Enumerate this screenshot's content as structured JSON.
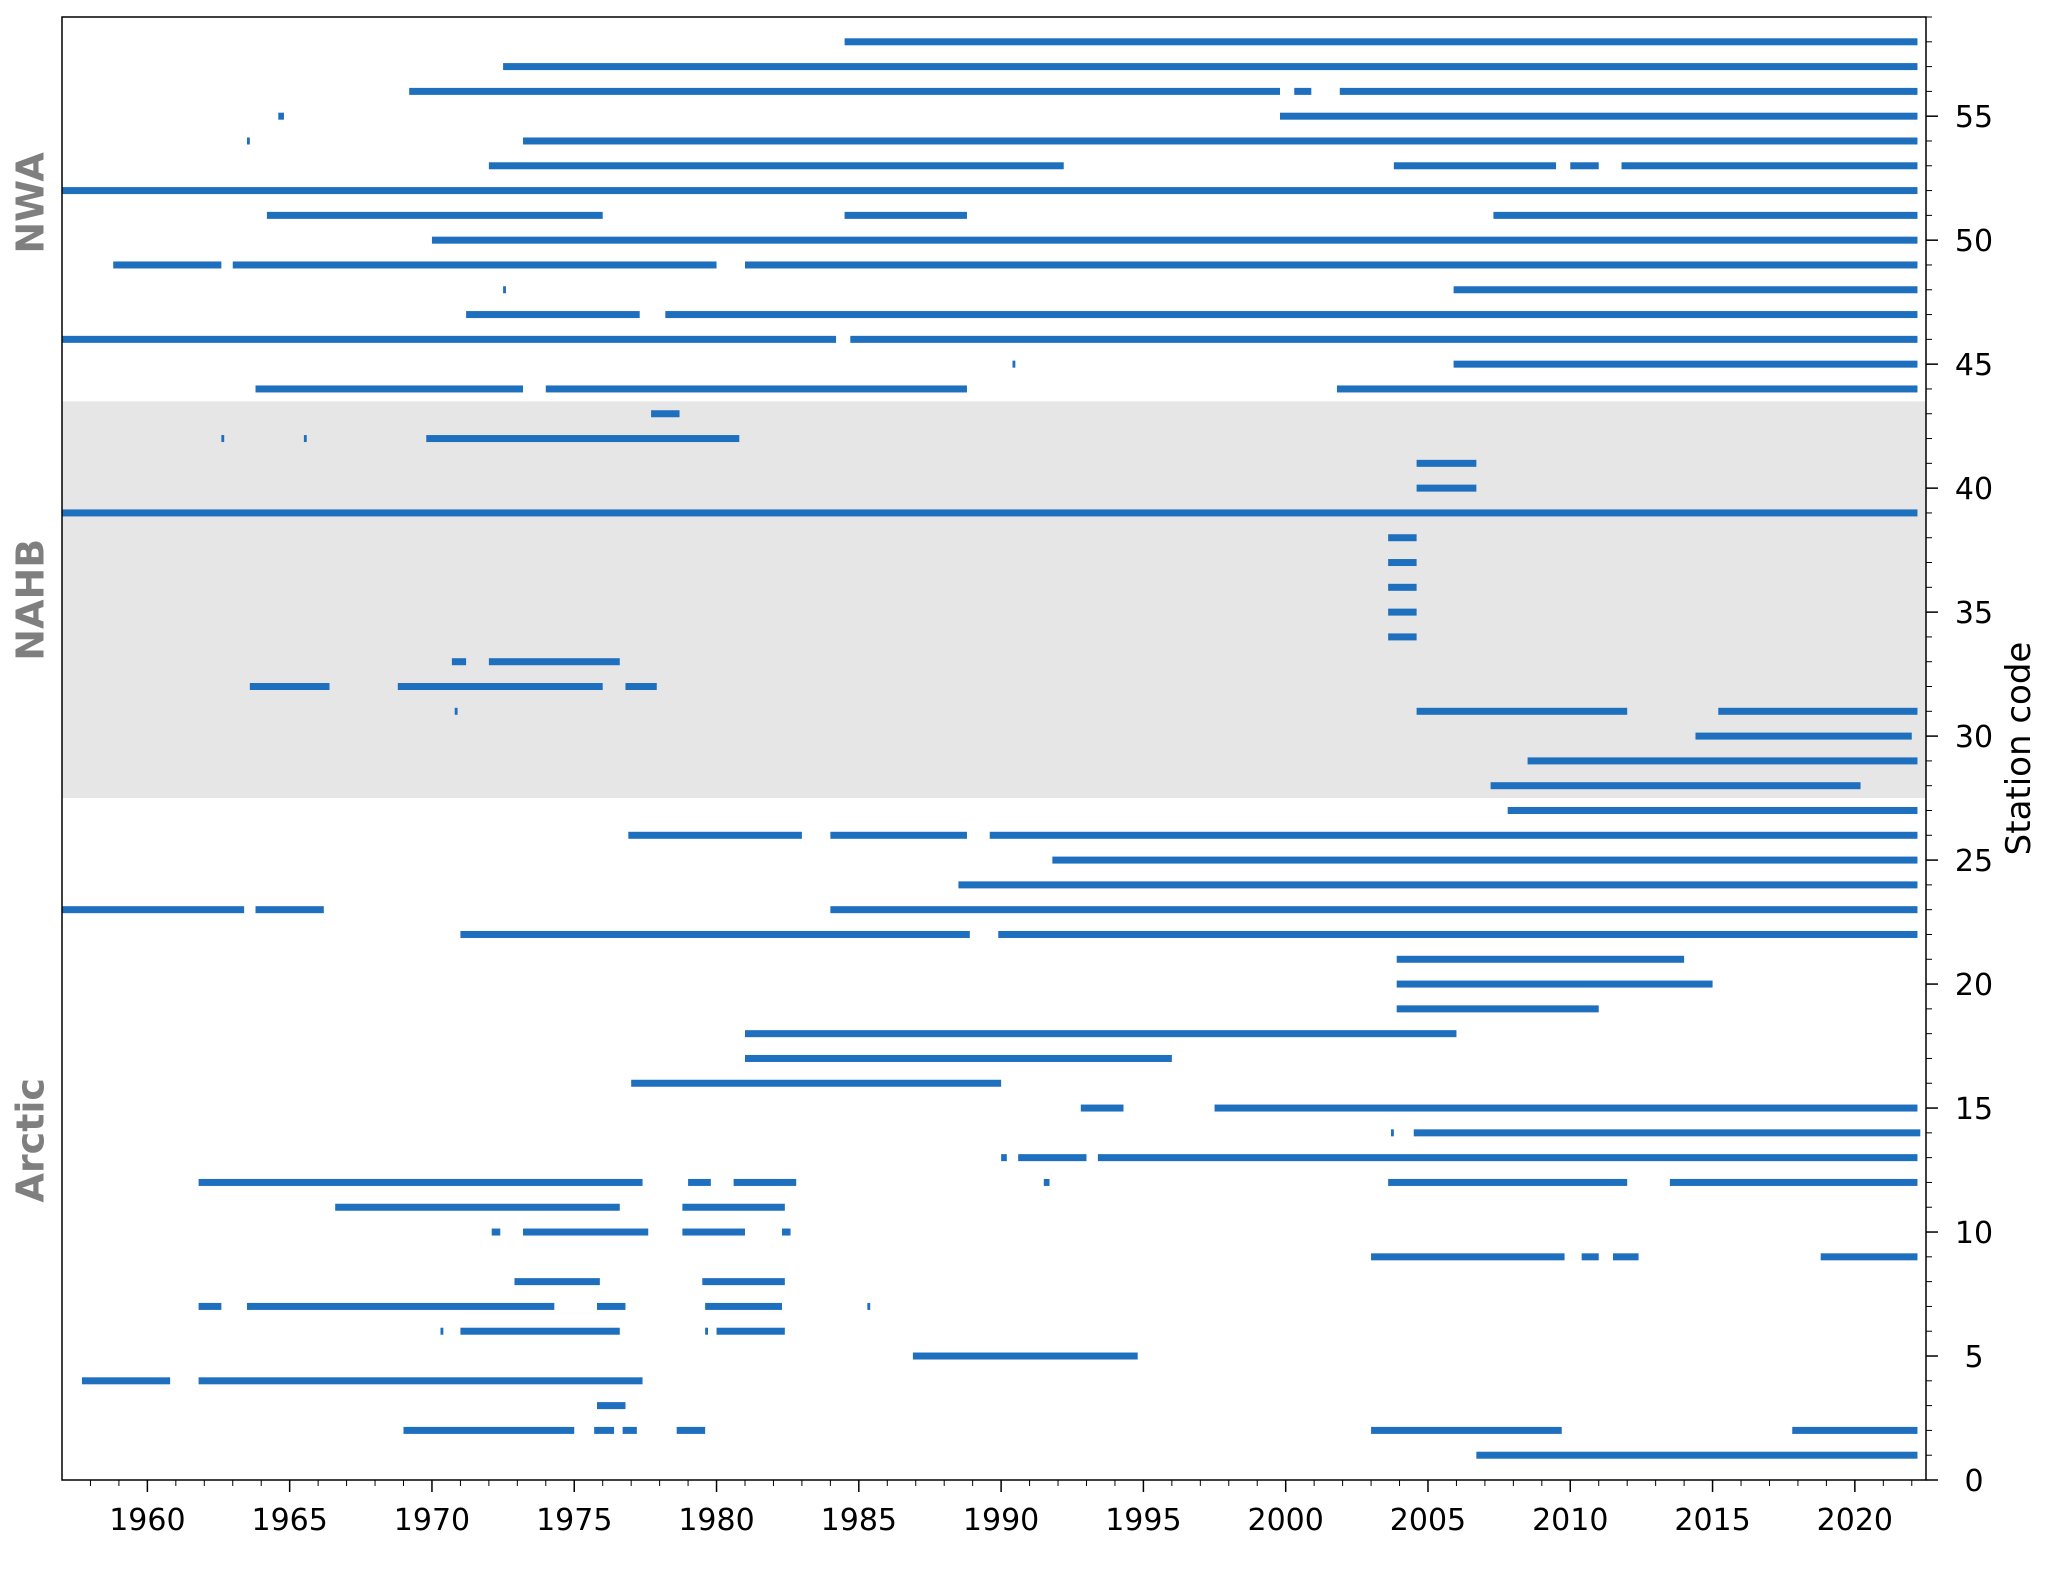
{
  "chart_data": {
    "type": "timeline",
    "xlim": [
      1957,
      2022.5
    ],
    "ylim": [
      0,
      59
    ],
    "ylabel": "Station code",
    "xticks": [
      "1960",
      "1965",
      "1970",
      "1975",
      "1980",
      "1985",
      "1990",
      "1995",
      "2000",
      "2005",
      "2010",
      "2015",
      "2020"
    ],
    "yticks": [
      "0",
      "5",
      "10",
      "15",
      "20",
      "25",
      "30",
      "35",
      "40",
      "45",
      "50",
      "55"
    ],
    "regions": [
      {
        "label": "NWA",
        "y_range": [
          43.5,
          59
        ]
      },
      {
        "label": "NAHB",
        "y_range": [
          27.5,
          43.5
        ],
        "shaded": true
      },
      {
        "label": "Arctic",
        "y_range": [
          0,
          27.5
        ]
      }
    ],
    "bar_color": "#1f6fbf",
    "shade_color": "#e6e6e6",
    "label_color": "#7f7f7f",
    "stations": [
      {
        "code": 58,
        "periods": [
          [
            1984.5,
            2022.2
          ]
        ]
      },
      {
        "code": 57,
        "periods": [
          [
            1972.5,
            2022.2
          ]
        ]
      },
      {
        "code": 56,
        "periods": [
          [
            1969.2,
            1999.8
          ],
          [
            2000.3,
            2000.9
          ],
          [
            2001.9,
            2022.2
          ]
        ]
      },
      {
        "code": 55,
        "periods": [
          [
            1964.6,
            1964.8
          ],
          [
            1999.8,
            2022.2
          ]
        ]
      },
      {
        "code": 54,
        "periods": [
          [
            1963.5,
            1963.6
          ],
          [
            1973.2,
            2022.2
          ]
        ]
      },
      {
        "code": 53,
        "periods": [
          [
            1972.0,
            1992.2
          ],
          [
            2003.8,
            2009.5
          ],
          [
            2010.0,
            2011.0
          ],
          [
            2011.8,
            2022.2
          ]
        ]
      },
      {
        "code": 52,
        "periods": [
          [
            1957.0,
            2022.2
          ]
        ]
      },
      {
        "code": 51,
        "periods": [
          [
            1964.2,
            1976.0
          ],
          [
            1984.5,
            1988.8
          ],
          [
            2007.3,
            2022.2
          ]
        ]
      },
      {
        "code": 50,
        "periods": [
          [
            1970.0,
            2022.2
          ]
        ]
      },
      {
        "code": 49,
        "periods": [
          [
            1958.8,
            1962.6
          ],
          [
            1963.0,
            1980.0
          ],
          [
            1981.0,
            2022.2
          ]
        ]
      },
      {
        "code": 48,
        "periods": [
          [
            1972.5,
            1972.6
          ],
          [
            2005.9,
            2022.2
          ]
        ]
      },
      {
        "code": 47,
        "periods": [
          [
            1971.2,
            1977.3
          ],
          [
            1978.2,
            2022.2
          ]
        ]
      },
      {
        "code": 46,
        "periods": [
          [
            1957.0,
            1984.2
          ],
          [
            1984.7,
            2022.2
          ]
        ]
      },
      {
        "code": 45,
        "periods": [
          [
            1990.4,
            1990.5
          ],
          [
            2005.9,
            2022.2
          ]
        ]
      },
      {
        "code": 44,
        "periods": [
          [
            1963.8,
            1973.2
          ],
          [
            1974.0,
            1988.8
          ],
          [
            2001.8,
            2022.2
          ]
        ]
      },
      {
        "code": 43,
        "periods": [
          [
            1977.7,
            1978.7
          ]
        ]
      },
      {
        "code": 42,
        "periods": [
          [
            1962.6,
            1962.7
          ],
          [
            1965.5,
            1965.6
          ],
          [
            1969.8,
            1980.8
          ]
        ]
      },
      {
        "code": 41,
        "periods": [
          [
            2004.6,
            2006.7
          ]
        ]
      },
      {
        "code": 40,
        "periods": [
          [
            2004.6,
            2006.7
          ]
        ]
      },
      {
        "code": 39,
        "periods": [
          [
            1957.0,
            2022.2
          ]
        ]
      },
      {
        "code": 38,
        "periods": [
          [
            2003.6,
            2004.6
          ]
        ]
      },
      {
        "code": 37,
        "periods": [
          [
            2003.6,
            2004.6
          ]
        ]
      },
      {
        "code": 36,
        "periods": [
          [
            2003.6,
            2004.6
          ]
        ]
      },
      {
        "code": 35,
        "periods": [
          [
            2003.6,
            2004.6
          ]
        ]
      },
      {
        "code": 34,
        "periods": [
          [
            2003.6,
            2004.6
          ]
        ]
      },
      {
        "code": 33,
        "periods": [
          [
            1970.7,
            1971.2
          ],
          [
            1972.0,
            1976.6
          ]
        ]
      },
      {
        "code": 32,
        "periods": [
          [
            1963.6,
            1966.4
          ],
          [
            1968.8,
            1976.0
          ],
          [
            1976.8,
            1977.9
          ]
        ]
      },
      {
        "code": 31,
        "periods": [
          [
            1970.8,
            1970.9
          ],
          [
            2004.6,
            2012.0
          ],
          [
            2015.2,
            2022.2
          ]
        ]
      },
      {
        "code": 30,
        "periods": [
          [
            2014.4,
            2022.0
          ]
        ]
      },
      {
        "code": 29,
        "periods": [
          [
            2008.5,
            2022.2
          ]
        ]
      },
      {
        "code": 28,
        "periods": [
          [
            2007.2,
            2020.2
          ]
        ]
      },
      {
        "code": 27,
        "periods": [
          [
            2007.8,
            2022.2
          ]
        ]
      },
      {
        "code": 26,
        "periods": [
          [
            1976.9,
            1983.0
          ],
          [
            1984.0,
            1988.8
          ],
          [
            1989.6,
            2022.2
          ]
        ]
      },
      {
        "code": 25,
        "periods": [
          [
            1991.8,
            2022.2
          ]
        ]
      },
      {
        "code": 24,
        "periods": [
          [
            1988.5,
            2022.2
          ]
        ]
      },
      {
        "code": 23,
        "periods": [
          [
            1957.0,
            1963.4
          ],
          [
            1963.8,
            1966.2
          ],
          [
            1984.0,
            2022.2
          ]
        ]
      },
      {
        "code": 22,
        "periods": [
          [
            1971.0,
            1988.9
          ],
          [
            1989.9,
            2022.2
          ]
        ]
      },
      {
        "code": 21,
        "periods": [
          [
            2003.9,
            2014.0
          ]
        ]
      },
      {
        "code": 20,
        "periods": [
          [
            2003.9,
            2015.0
          ]
        ]
      },
      {
        "code": 19,
        "periods": [
          [
            2003.9,
            2011.0
          ]
        ]
      },
      {
        "code": 18,
        "periods": [
          [
            1981.0,
            2006.0
          ]
        ]
      },
      {
        "code": 17,
        "periods": [
          [
            1981.0,
            1996.0
          ]
        ]
      },
      {
        "code": 16,
        "periods": [
          [
            1977.0,
            1990.0
          ]
        ]
      },
      {
        "code": 15,
        "periods": [
          [
            1992.8,
            1994.3
          ],
          [
            1997.5,
            2022.2
          ]
        ]
      },
      {
        "code": 14,
        "periods": [
          [
            2003.7,
            2003.8
          ],
          [
            2004.5,
            2022.3
          ]
        ]
      },
      {
        "code": 13,
        "periods": [
          [
            1990.0,
            1990.2
          ],
          [
            1990.6,
            1993.0
          ],
          [
            1993.4,
            2022.2
          ]
        ]
      },
      {
        "code": 12,
        "periods": [
          [
            1961.8,
            1977.4
          ],
          [
            1979.0,
            1979.8
          ],
          [
            1980.6,
            1982.8
          ],
          [
            1991.5,
            1991.7
          ],
          [
            2003.6,
            2012.0
          ],
          [
            2013.5,
            2022.2
          ]
        ]
      },
      {
        "code": 11,
        "periods": [
          [
            1966.6,
            1976.6
          ],
          [
            1978.8,
            1982.4
          ]
        ]
      },
      {
        "code": 10,
        "periods": [
          [
            1972.1,
            1972.4
          ],
          [
            1973.2,
            1977.6
          ],
          [
            1978.8,
            1981.0
          ],
          [
            1982.3,
            1982.6
          ]
        ]
      },
      {
        "code": 9,
        "periods": [
          [
            2003.0,
            2009.8
          ],
          [
            2010.4,
            2011.0
          ],
          [
            2011.5,
            2012.4
          ],
          [
            2018.8,
            2022.2
          ]
        ]
      },
      {
        "code": 8,
        "periods": [
          [
            1972.9,
            1975.9
          ],
          [
            1979.5,
            1982.4
          ]
        ]
      },
      {
        "code": 7,
        "periods": [
          [
            1961.8,
            1962.6
          ],
          [
            1963.5,
            1974.3
          ],
          [
            1975.8,
            1976.8
          ],
          [
            1979.6,
            1982.3
          ],
          [
            1985.3,
            1985.4
          ]
        ]
      },
      {
        "code": 6,
        "periods": [
          [
            1970.3,
            1970.4
          ],
          [
            1971.0,
            1976.6
          ],
          [
            1979.6,
            1979.7
          ],
          [
            1980.0,
            1982.4
          ]
        ]
      },
      {
        "code": 5,
        "periods": [
          [
            1986.9,
            1994.8
          ]
        ]
      },
      {
        "code": 4,
        "periods": [
          [
            1957.7,
            1960.8
          ],
          [
            1961.8,
            1977.4
          ]
        ]
      },
      {
        "code": 3,
        "periods": [
          [
            1975.8,
            1976.8
          ]
        ]
      },
      {
        "code": 2,
        "periods": [
          [
            1969.0,
            1975.0
          ],
          [
            1975.7,
            1976.4
          ],
          [
            1976.7,
            1977.2
          ],
          [
            1978.6,
            1979.6
          ],
          [
            2003.0,
            2009.7
          ],
          [
            2017.8,
            2022.2
          ]
        ]
      },
      {
        "code": 1,
        "periods": [
          [
            2006.7,
            2022.2
          ]
        ]
      }
    ]
  }
}
